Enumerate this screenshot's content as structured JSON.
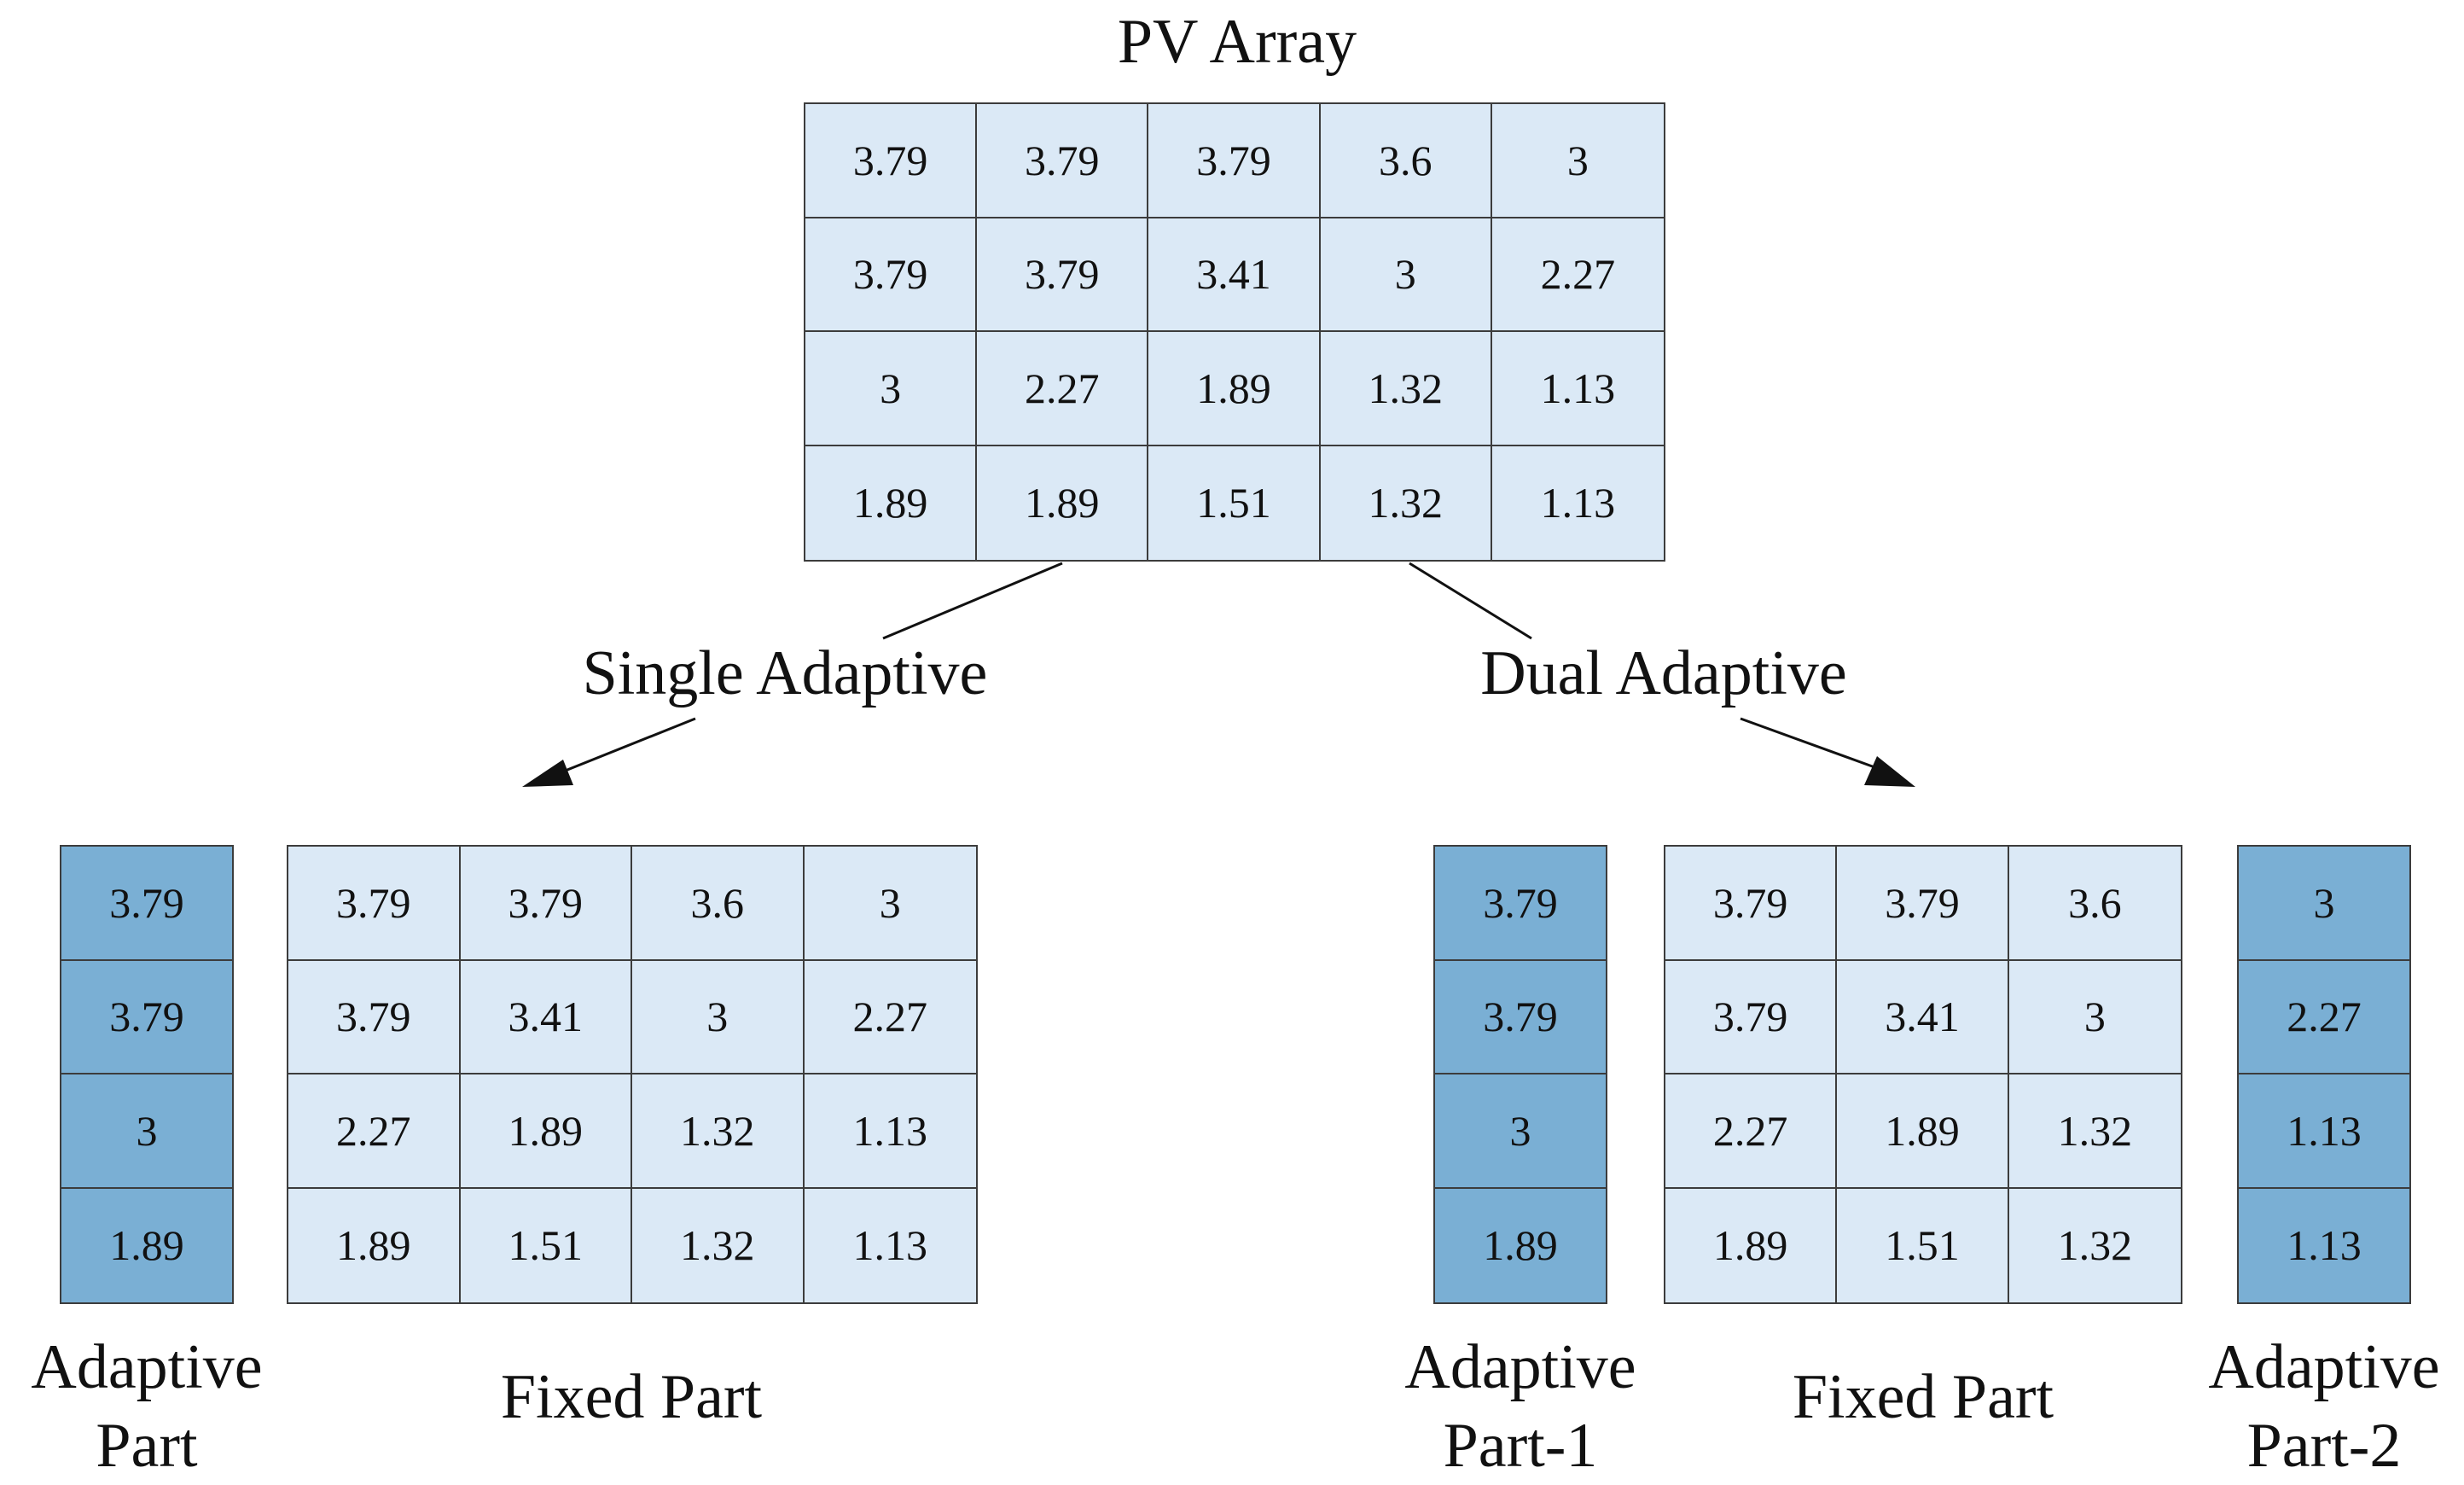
{
  "title": "PV Array",
  "pv_array": [
    [
      "3.79",
      "3.79",
      "3.79",
      "3.6",
      "3"
    ],
    [
      "3.79",
      "3.79",
      "3.41",
      "3",
      "2.27"
    ],
    [
      "3",
      "2.27",
      "1.89",
      "1.32",
      "1.13"
    ],
    [
      "1.89",
      "1.89",
      "1.51",
      "1.32",
      "1.13"
    ]
  ],
  "single": {
    "label": "Single Adaptive",
    "adaptive": {
      "values": [
        "3.79",
        "3.79",
        "3",
        "1.89"
      ],
      "label_line1": "Adaptive",
      "label_line2": "Part"
    },
    "fixed": {
      "values": [
        [
          "3.79",
          "3.79",
          "3.6",
          "3"
        ],
        [
          "3.79",
          "3.41",
          "3",
          "2.27"
        ],
        [
          "2.27",
          "1.89",
          "1.32",
          "1.13"
        ],
        [
          "1.89",
          "1.51",
          "1.32",
          "1.13"
        ]
      ],
      "label": "Fixed Part"
    }
  },
  "dual": {
    "label": "Dual Adaptive",
    "adaptive1": {
      "values": [
        "3.79",
        "3.79",
        "3",
        "1.89"
      ],
      "label_line1": "Adaptive",
      "label_line2": "Part-1"
    },
    "fixed": {
      "values": [
        [
          "3.79",
          "3.79",
          "3.6"
        ],
        [
          "3.79",
          "3.41",
          "3"
        ],
        [
          "2.27",
          "1.89",
          "1.32"
        ],
        [
          "1.89",
          "1.51",
          "1.32"
        ]
      ],
      "label": "Fixed Part"
    },
    "adaptive2": {
      "values": [
        "3",
        "2.27",
        "1.13",
        "1.13"
      ],
      "label_line1": "Adaptive",
      "label_line2": "Part-2"
    }
  },
  "colors": {
    "fixed_cell": "#dbe9f6",
    "adaptive_cell": "#7aafd4",
    "border": "#3c3c3c"
  }
}
